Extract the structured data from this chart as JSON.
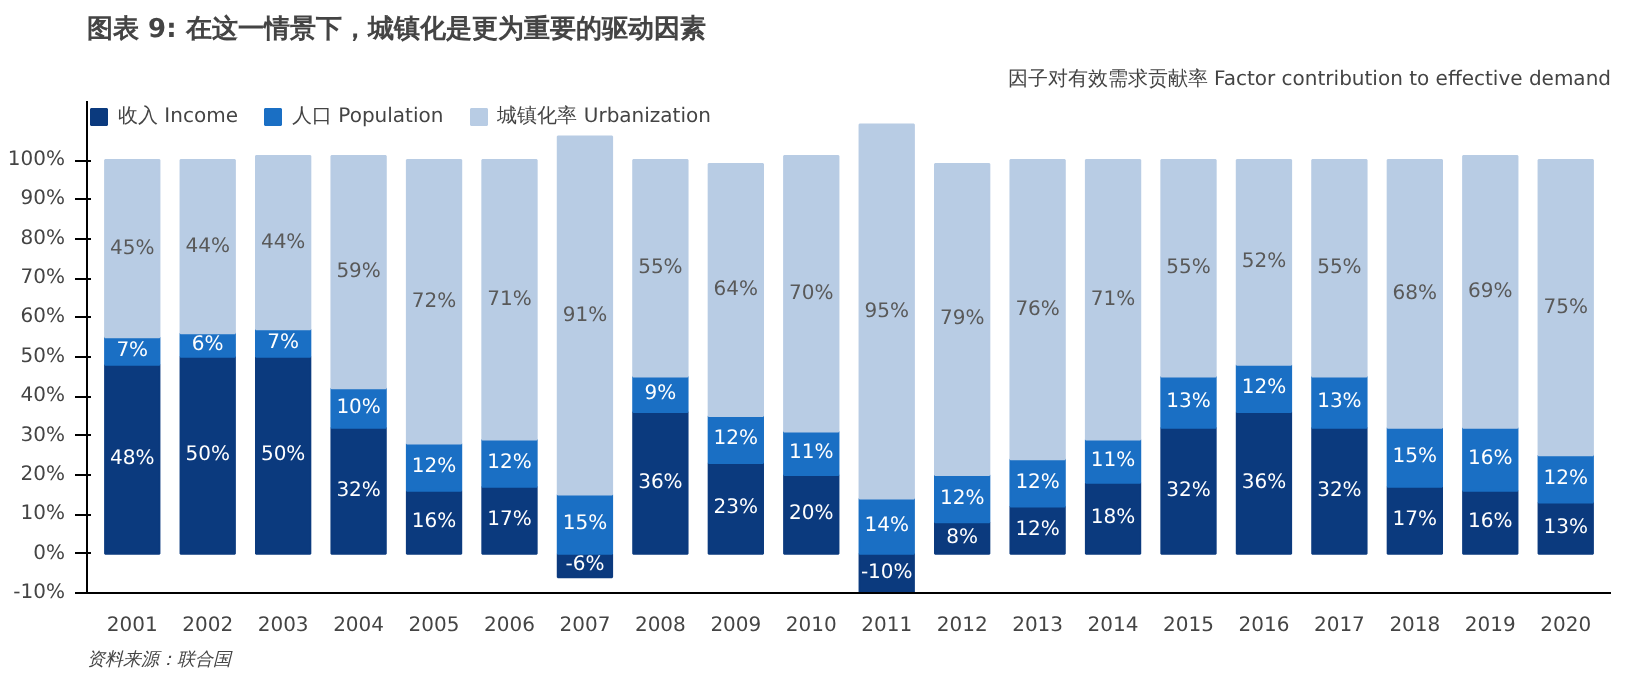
{
  "chart_data": {
    "type": "bar",
    "title": "图表 9: 在这一情景下，城镇化是更为重要的驱动因素",
    "subtitle": "因子对有效需求贡献率 Factor contribution to effective demand",
    "annotations": [
      "资料来源：联合国"
    ],
    "categories": [
      "2001",
      "2002",
      "2003",
      "2004",
      "2005",
      "2006",
      "2007",
      "2008",
      "2009",
      "2010",
      "2011",
      "2012",
      "2013",
      "2014",
      "2015",
      "2016",
      "2017",
      "2018",
      "2019",
      "2020"
    ],
    "stacked": true,
    "series": [
      {
        "name": "收入 Income",
        "color": "#0b3a7e",
        "values": [
          48,
          50,
          50,
          32,
          16,
          17,
          -6,
          36,
          23,
          20,
          -10,
          8,
          12,
          18,
          32,
          36,
          32,
          17,
          16,
          13
        ],
        "value_labels": [
          "48%",
          "50%",
          "50%",
          "32%",
          "16%",
          "17%",
          "-6%",
          "36%",
          "23%",
          "20%",
          "-10%",
          "8%",
          "12%",
          "18%",
          "32%",
          "36%",
          "32%",
          "17%",
          "16%",
          "13%"
        ]
      },
      {
        "name": "人口 Population",
        "color": "#1a6fc4",
        "values": [
          7,
          6,
          7,
          10,
          12,
          12,
          15,
          9,
          12,
          11,
          14,
          12,
          12,
          11,
          13,
          12,
          13,
          15,
          16,
          12
        ],
        "value_labels": [
          "7%",
          "6%",
          "7%",
          "10%",
          "12%",
          "12%",
          "15%",
          "9%",
          "12%",
          "11%",
          "14%",
          "12%",
          "12%",
          "11%",
          "13%",
          "12%",
          "13%",
          "15%",
          "16%",
          "12%"
        ]
      },
      {
        "name": "城镇化率 Urbanization",
        "color": "#b8cce4",
        "values": [
          45,
          44,
          44,
          59,
          72,
          71,
          91,
          55,
          64,
          70,
          95,
          79,
          76,
          71,
          55,
          52,
          55,
          68,
          69,
          75
        ],
        "value_labels": [
          "45%",
          "44%",
          "44%",
          "59%",
          "72%",
          "71%",
          "91%",
          "55%",
          "64%",
          "70%",
          "95%",
          "79%",
          "76%",
          "71%",
          "55%",
          "52%",
          "55%",
          "68%",
          "69%",
          "75%"
        ]
      }
    ],
    "ylim": [
      -10,
      115
    ],
    "yticks": [
      {
        "value": -10,
        "label": "-10%"
      },
      {
        "value": 0,
        "label": "0%"
      },
      {
        "value": 10,
        "label": "10%"
      },
      {
        "value": 20,
        "label": "20%"
      },
      {
        "value": 30,
        "label": "30%"
      },
      {
        "value": 40,
        "label": "40%"
      },
      {
        "value": 50,
        "label": "50%"
      },
      {
        "value": 60,
        "label": "60%"
      },
      {
        "value": 70,
        "label": "70%"
      },
      {
        "value": 80,
        "label": "80%"
      },
      {
        "value": 90,
        "label": "90%"
      },
      {
        "value": 100,
        "label": "100%"
      }
    ],
    "grid": false,
    "legend": "top left"
  }
}
